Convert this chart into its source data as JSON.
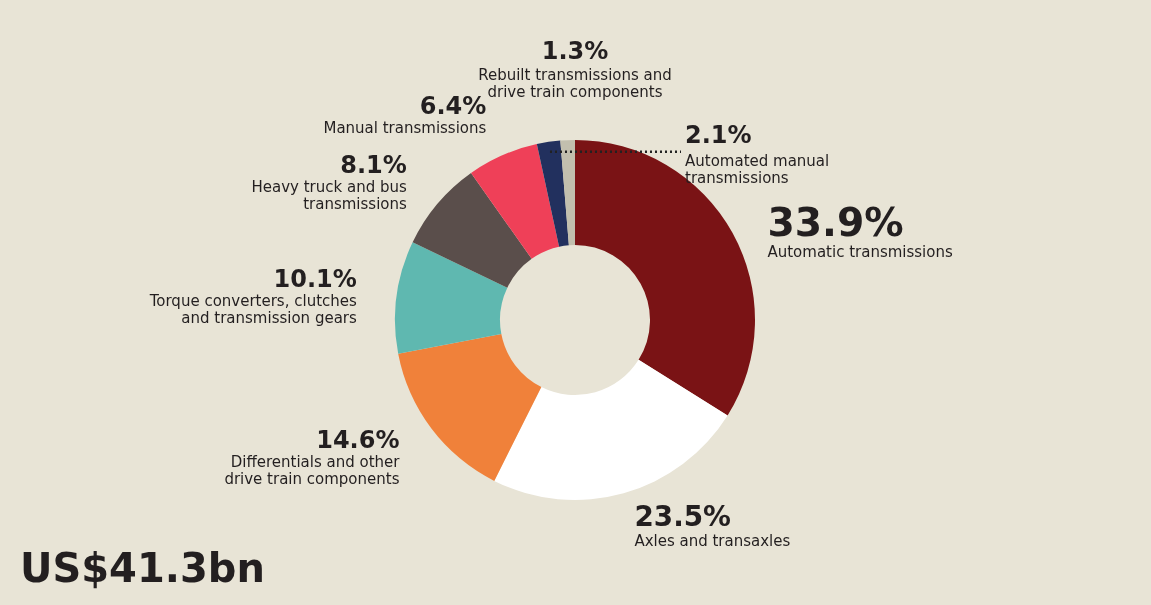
{
  "chart_data": {
    "type": "donut",
    "categories": [
      "Automatic transmissions",
      "Axles and transaxles",
      "Differentials and other drive train components",
      "Torque converters, clutches and transmission gears",
      "Heavy truck and bus transmissions",
      "Manual transmissions",
      "Automated manual transmissions",
      "Rebuilt transmissions and drive train components"
    ],
    "values": [
      33.9,
      23.5,
      14.6,
      10.1,
      8.1,
      6.4,
      2.1,
      1.3
    ],
    "colors": [
      "#7a1315",
      "#ffffff",
      "#f0813a",
      "#5fb8b0",
      "#5a4e4b",
      "#ef4058",
      "#22305e",
      "#c2bfae"
    ],
    "value_labels": [
      "33.9%",
      "23.5%",
      "14.6%",
      "10.1%",
      "8.1%",
      "6.4%",
      "2.1%",
      "1.3%"
    ],
    "annotations": [
      "US$41.3bn"
    ]
  }
}
